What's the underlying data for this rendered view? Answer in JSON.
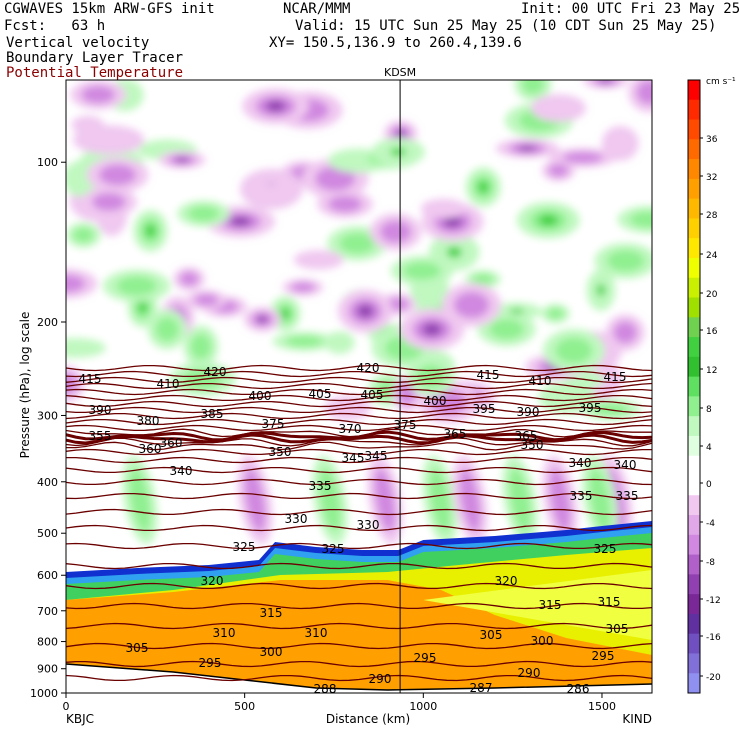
{
  "header": {
    "model": "CGWAVES 15km ARW-GFS init",
    "fcst": "Fcst:   63 h",
    "org": "NCAR/MMM",
    "init": "Init: 00 UTC Fri 23 May 25",
    "valid": "Valid: 15 UTC Sun 25 May 25 (10 CDT Sun 25 May 25)",
    "xy": "XY= 150.5,136.9 to 260.4,139.6",
    "field1": "Vertical velocity",
    "field2": "Boundary Layer Tracer",
    "field3": "Potential Temperature",
    "field3_color": "#8b0000"
  },
  "chart_data": {
    "type": "heatmap",
    "title": "KDSM",
    "xlabel": "Distance (km)",
    "ylabel": "Pressure (hPa), log scale",
    "xlim": [
      0,
      1640
    ],
    "ylim": [
      1000,
      70
    ],
    "y_scale": "log",
    "x_ticks": [
      "0",
      "500",
      "1000",
      "1500"
    ],
    "y_ticks": [
      "100",
      "200",
      "300",
      "400",
      "500",
      "600",
      "700",
      "800",
      "900",
      "1000"
    ],
    "left_station": "KBJC",
    "right_station": "KIND",
    "marker_station_km": 935,
    "colorbar": {
      "units": "cm s⁻¹",
      "labels": [
        "36",
        "32",
        "28",
        "24",
        "20",
        "16",
        "12",
        "8",
        "4",
        "0",
        "-4",
        "-8",
        "-12",
        "-16",
        "-20"
      ],
      "colors": [
        "#ff0000",
        "#ff2a00",
        "#ff4a00",
        "#ff6a00",
        "#ff8800",
        "#ffa000",
        "#ffb800",
        "#ffd000",
        "#ffe800",
        "#f0ff00",
        "#c8f000",
        "#a0e000",
        "#70d050",
        "#40d040",
        "#30c030",
        "#60e060",
        "#90f090",
        "#c0f8c0",
        "#e0ffe0",
        "#ffffff",
        "#ffffff",
        "#f0c8f0",
        "#e0a8e8",
        "#d088e0",
        "#b060c8",
        "#9040b0",
        "#7a2898",
        "#6030a0",
        "#7050c0",
        "#8070d8",
        "#9090f0"
      ]
    },
    "theta_labels": [
      "415",
      "410",
      "420",
      "400",
      "405",
      "405",
      "420",
      "415",
      "410",
      "415",
      "390",
      "380",
      "385",
      "375",
      "370",
      "375",
      "400",
      "395",
      "390",
      "395",
      "360",
      "365",
      "365",
      "355",
      "360",
      "350",
      "345",
      "345",
      "350",
      "340",
      "340",
      "340",
      "335",
      "335",
      "335",
      "330",
      "330",
      "325",
      "325",
      "325",
      "320",
      "320",
      "315",
      "315",
      "315",
      "310",
      "310",
      "305",
      "305",
      "300",
      "305",
      "295",
      "300",
      "295",
      "290",
      "295",
      "288",
      "290",
      "287",
      "286"
    ],
    "areas": [
      "Boundary Layer Tracer",
      "Vertical velocity"
    ]
  }
}
